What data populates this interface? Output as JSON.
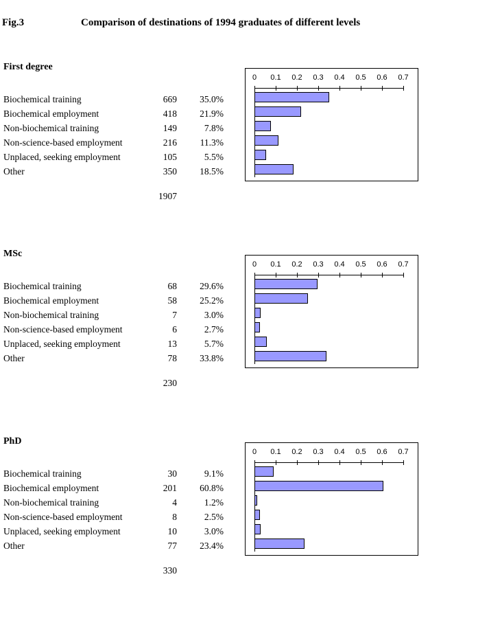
{
  "figure": {
    "label": "Fig.3",
    "title": "Comparison of destinations of 1994 graduates of different levels"
  },
  "categories": [
    "Biochemical training",
    "Biochemical employment",
    "Non-biochemical training",
    "Non-science-based employment",
    "Unplaced, seeking employment",
    "Other"
  ],
  "sections": [
    {
      "title": "First degree",
      "counts": [
        669,
        418,
        149,
        216,
        105,
        350
      ],
      "percents": [
        "35.0%",
        "21.9%",
        "7.8%",
        "11.3%",
        "5.5%",
        "18.5%"
      ],
      "total": 1907
    },
    {
      "title": "MSc",
      "counts": [
        68,
        58,
        7,
        6,
        13,
        78
      ],
      "percents": [
        "29.6%",
        "25.2%",
        "3.0%",
        "2.7%",
        "5.7%",
        "33.8%"
      ],
      "total": 230
    },
    {
      "title": "PhD",
      "counts": [
        30,
        201,
        4,
        8,
        10,
        77
      ],
      "percents": [
        "9.1%",
        "60.8%",
        "1.2%",
        "2.5%",
        "3.0%",
        "23.4%"
      ],
      "total": 330
    }
  ],
  "chart": {
    "axis_ticks": [
      "0",
      "0.1",
      "0.2",
      "0.3",
      "0.4",
      "0.5",
      "0.6",
      "0.7"
    ],
    "axis_max": 0.7,
    "bar_color": "#9999FF",
    "bar_border_color": "#000000",
    "axis_color": "#000000"
  },
  "chart_data": [
    {
      "type": "bar",
      "orientation": "horizontal",
      "title": "First degree",
      "categories": [
        "Biochemical training",
        "Biochemical employment",
        "Non-biochemical training",
        "Non-science-based employment",
        "Unplaced, seeking employment",
        "Other"
      ],
      "values": [
        0.35,
        0.219,
        0.078,
        0.113,
        0.055,
        0.185
      ],
      "xlim": [
        0,
        0.7
      ],
      "x_tick_labels": [
        "0",
        "0.1",
        "0.2",
        "0.3",
        "0.4",
        "0.5",
        "0.6",
        "0.7"
      ],
      "grid": false,
      "legend": false,
      "bar_color": "#9999FF"
    },
    {
      "type": "bar",
      "orientation": "horizontal",
      "title": "MSc",
      "categories": [
        "Biochemical training",
        "Biochemical employment",
        "Non-biochemical training",
        "Non-science-based employment",
        "Unplaced, seeking employment",
        "Other"
      ],
      "values": [
        0.296,
        0.252,
        0.03,
        0.027,
        0.057,
        0.338
      ],
      "xlim": [
        0,
        0.7
      ],
      "x_tick_labels": [
        "0",
        "0.1",
        "0.2",
        "0.3",
        "0.4",
        "0.5",
        "0.6",
        "0.7"
      ],
      "grid": false,
      "legend": false,
      "bar_color": "#9999FF"
    },
    {
      "type": "bar",
      "orientation": "horizontal",
      "title": "PhD",
      "categories": [
        "Biochemical training",
        "Biochemical employment",
        "Non-biochemical training",
        "Non-science-based employment",
        "Unplaced, seeking employment",
        "Other"
      ],
      "values": [
        0.091,
        0.608,
        0.012,
        0.025,
        0.03,
        0.234
      ],
      "xlim": [
        0,
        0.7
      ],
      "x_tick_labels": [
        "0",
        "0.1",
        "0.2",
        "0.3",
        "0.4",
        "0.5",
        "0.6",
        "0.7"
      ],
      "grid": false,
      "legend": false,
      "bar_color": "#9999FF"
    }
  ]
}
